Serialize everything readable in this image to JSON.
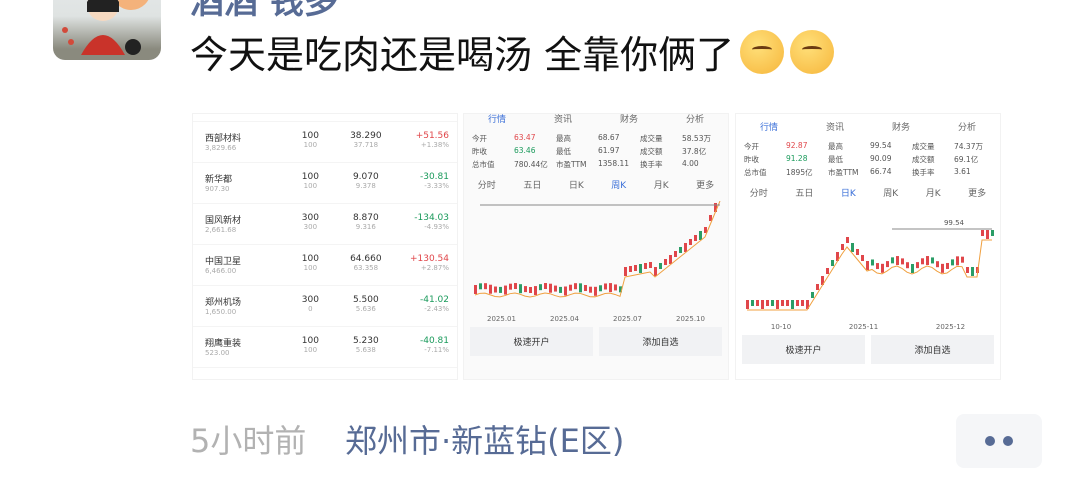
{
  "post": {
    "author": "酒酒 钱多",
    "text": "今天是吃肉还是喝汤 全靠你俩了",
    "emojis": [
      "shushing-face-icon",
      "shushing-face-icon"
    ],
    "time": "5小时前",
    "location": "郑州市·新蓝钻(E区)"
  },
  "image1": {
    "rows": [
      {
        "name": "西部材料",
        "sub": "3,829.66",
        "qty": "100",
        "qsub": "100",
        "price": "38.290",
        "psub": "37.718",
        "chg": "+51.56",
        "pct": "+1.38%",
        "up": true
      },
      {
        "name": "新华都",
        "sub": "907.30",
        "qty": "100",
        "qsub": "100",
        "price": "9.070",
        "psub": "9.378",
        "chg": "-30.81",
        "pct": "-3.33%",
        "up": false
      },
      {
        "name": "国风新材",
        "sub": "2,661.68",
        "qty": "300",
        "qsub": "300",
        "price": "8.870",
        "psub": "9.316",
        "chg": "-134.03",
        "pct": "-4.93%",
        "up": false
      },
      {
        "name": "中国卫星",
        "sub": "6,466.00",
        "qty": "100",
        "qsub": "100",
        "price": "64.660",
        "psub": "63.358",
        "chg": "+130.54",
        "pct": "+2.87%",
        "up": true
      },
      {
        "name": "郑州机场",
        "sub": "1,650.00",
        "qty": "300",
        "qsub": "0",
        "price": "5.500",
        "psub": "5.636",
        "chg": "-41.02",
        "pct": "-2.43%",
        "up": false
      },
      {
        "name": "翔鹰重装",
        "sub": "523.00",
        "qty": "100",
        "qsub": "100",
        "price": "5.230",
        "psub": "5.638",
        "chg": "-40.81",
        "pct": "-7.11%",
        "up": false
      }
    ]
  },
  "image2": {
    "tabs": [
      "行情",
      "资讯",
      "财务",
      "分析"
    ],
    "stats": [
      "今开",
      "63.47",
      "最高",
      "68.67",
      "成交量",
      "58.53万",
      "昨收",
      "63.46",
      "最低",
      "61.97",
      "成交额",
      "37.8亿",
      "总市值",
      "780.44亿",
      "市盈TTM",
      "1358.11",
      "换手率",
      "4.00"
    ],
    "periods": [
      "分时",
      "五日",
      "日K",
      "周K",
      "月K",
      "更多"
    ],
    "dates": [
      "2025.01",
      "2025.04",
      "2025.07",
      "2025.10"
    ],
    "buttons": [
      "极速开户",
      "添加自选"
    ]
  },
  "image3": {
    "tabs": [
      "行情",
      "资讯",
      "财务",
      "分析"
    ],
    "stats": [
      "今开",
      "92.87",
      "最高",
      "99.54",
      "成交量",
      "74.37万",
      "昨收",
      "91.28",
      "最低",
      "90.09",
      "成交额",
      "69.1亿",
      "总市值",
      "1895亿",
      "市盈TTM",
      "66.74",
      "换手率",
      "3.61"
    ],
    "periods": [
      "分时",
      "五日",
      "日K",
      "周K",
      "月K",
      "更多"
    ],
    "high": "99.54",
    "dates": [
      "10-10",
      "2025-11",
      "2025-12"
    ],
    "buttons": [
      "极速开户",
      "添加自选"
    ]
  }
}
